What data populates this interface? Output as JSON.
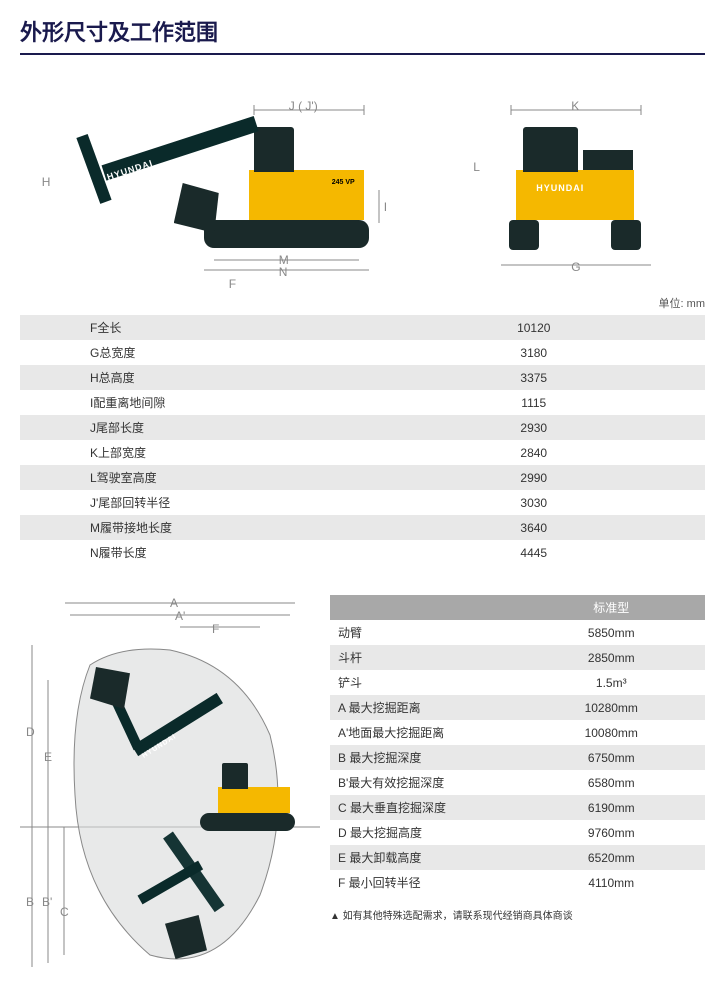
{
  "title": "外形尺寸及工作范围",
  "unit_label": "单位: mm",
  "brand_text": "HYUNDAI",
  "model_text": "245 VP",
  "colors": {
    "title_color": "#1a1a4d",
    "divider_color": "#1a1a4d",
    "row_alt_bg": "#e8e8e8",
    "header_bg": "#a8a8a8",
    "header_fg": "#ffffff",
    "body_yellow": "#f5b800",
    "machine_dark": "#1a2a2a",
    "dim_line_color": "#888888",
    "text_color": "#333333"
  },
  "top_diagram": {
    "side_labels": [
      "H",
      "J ( J')",
      "M",
      "N",
      "F",
      "I"
    ],
    "front_labels": [
      "K",
      "L",
      "G"
    ]
  },
  "spec1": {
    "rows": [
      {
        "label": "F全长",
        "value": "10120"
      },
      {
        "label": "G总宽度",
        "value": "3180"
      },
      {
        "label": "H总高度",
        "value": "3375"
      },
      {
        "label": "I配重离地间隙",
        "value": "1115"
      },
      {
        "label": "J尾部长度",
        "value": "2930"
      },
      {
        "label": "K上部宽度",
        "value": "2840"
      },
      {
        "label": "L驾驶室高度",
        "value": "2990"
      },
      {
        "label": "J'尾部回转半径",
        "value": "3030"
      },
      {
        "label": "M履带接地长度",
        "value": "3640"
      },
      {
        "label": "N履带长度",
        "value": "4445"
      }
    ]
  },
  "range_diagram": {
    "labels": [
      "A",
      "A'",
      "F",
      "B",
      "B'",
      "C",
      "D",
      "E"
    ]
  },
  "spec2": {
    "header": "标准型",
    "rows": [
      {
        "label": "动臂",
        "value": "5850mm"
      },
      {
        "label": "斗杆",
        "value": "2850mm"
      },
      {
        "label": "铲斗",
        "value": "1.5m³"
      },
      {
        "label": "A 最大挖掘距离",
        "value": "10280mm"
      },
      {
        "label": "A'地面最大挖掘距离",
        "value": "10080mm"
      },
      {
        "label": "B 最大挖掘深度",
        "value": "6750mm"
      },
      {
        "label": "B'最大有效挖掘深度",
        "value": "6580mm"
      },
      {
        "label": "C 最大垂直挖掘深度",
        "value": "6190mm"
      },
      {
        "label": "D 最大挖掘高度",
        "value": "9760mm"
      },
      {
        "label": "E 最大卸载高度",
        "value": "6520mm"
      },
      {
        "label": "F 最小回转半径",
        "value": "4110mm"
      }
    ]
  },
  "note": "如有其他特殊选配需求，请联系现代经销商具体商谈"
}
